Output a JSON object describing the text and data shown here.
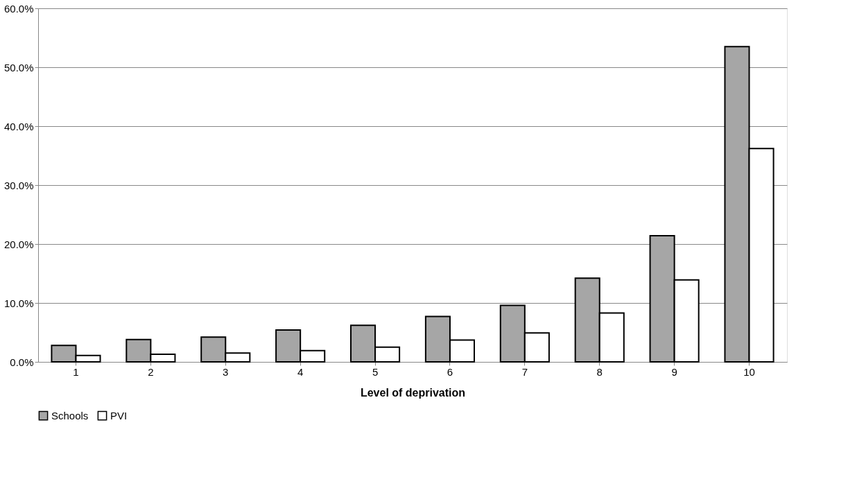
{
  "chart_data": {
    "type": "bar",
    "xlabel": "Level of deprivation",
    "categories": [
      "1",
      "2",
      "3",
      "4",
      "5",
      "6",
      "7",
      "8",
      "9",
      "10"
    ],
    "series": [
      {
        "name": "Schools",
        "color": "#a6a6a6",
        "values": [
          2.8,
          3.8,
          4.2,
          5.4,
          6.2,
          7.7,
          9.6,
          14.2,
          21.4,
          53.5
        ]
      },
      {
        "name": "PVI",
        "color": "#ffffff",
        "values": [
          1.1,
          1.3,
          1.5,
          1.9,
          2.5,
          3.7,
          4.9,
          8.3,
          13.9,
          36.2
        ]
      }
    ],
    "ylim": [
      0,
      60
    ],
    "yticks": [
      {
        "value": 0,
        "label": "0.0%"
      },
      {
        "value": 10,
        "label": "10.0%"
      },
      {
        "value": 20,
        "label": "20.0%"
      },
      {
        "value": 30,
        "label": "30.0%"
      },
      {
        "value": 40,
        "label": "40.0%"
      },
      {
        "value": 50,
        "label": "50.0%"
      },
      {
        "value": 60,
        "label": "60.0%"
      }
    ],
    "grid": "y",
    "legend": "bottom"
  }
}
